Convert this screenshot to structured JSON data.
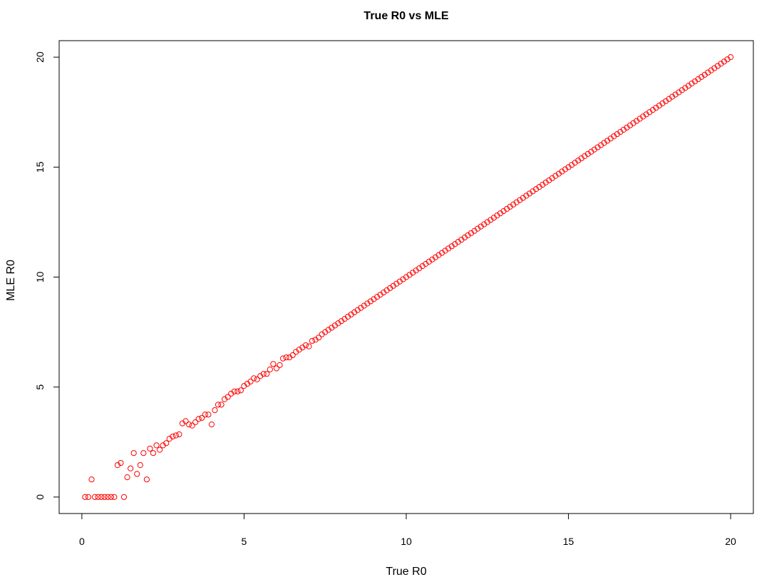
{
  "chart_data": {
    "type": "scatter",
    "title": "True R0 vs MLE",
    "xlabel": "True R0",
    "ylabel": "MLE R0",
    "xlim": [
      -0.7,
      20.7
    ],
    "ylim": [
      -0.75,
      20.75
    ],
    "xticks": [
      "0",
      "5",
      "10",
      "15",
      "20"
    ],
    "yticks": [
      "0",
      "5",
      "10",
      "15",
      "20"
    ],
    "grid": false,
    "legend": "none",
    "point_color": "#ff0000",
    "marker": "open-circle",
    "points": [
      [
        0.1,
        0
      ],
      [
        0.2,
        0
      ],
      [
        0.3,
        0.8
      ],
      [
        0.4,
        0
      ],
      [
        0.5,
        0
      ],
      [
        0.6,
        0
      ],
      [
        0.7,
        0
      ],
      [
        0.8,
        0
      ],
      [
        0.9,
        0
      ],
      [
        1.0,
        0
      ],
      [
        1.1,
        1.45
      ],
      [
        1.2,
        1.55
      ],
      [
        1.3,
        0
      ],
      [
        1.4,
        0.9
      ],
      [
        1.5,
        1.3
      ],
      [
        1.6,
        2.0
      ],
      [
        1.7,
        1.05
      ],
      [
        1.8,
        1.45
      ],
      [
        1.9,
        2.0
      ],
      [
        2.0,
        0.8
      ],
      [
        2.1,
        2.2
      ],
      [
        2.2,
        2.0
      ],
      [
        2.3,
        2.35
      ],
      [
        2.4,
        2.15
      ],
      [
        2.5,
        2.35
      ],
      [
        2.6,
        2.45
      ],
      [
        2.7,
        2.65
      ],
      [
        2.8,
        2.75
      ],
      [
        2.9,
        2.8
      ],
      [
        3.0,
        2.85
      ],
      [
        3.1,
        3.35
      ],
      [
        3.2,
        3.45
      ],
      [
        3.3,
        3.3
      ],
      [
        3.4,
        3.25
      ],
      [
        3.5,
        3.4
      ],
      [
        3.6,
        3.55
      ],
      [
        3.7,
        3.6
      ],
      [
        3.8,
        3.75
      ],
      [
        3.9,
        3.75
      ],
      [
        4.0,
        3.3
      ],
      [
        4.1,
        3.95
      ],
      [
        4.2,
        4.2
      ],
      [
        4.3,
        4.2
      ],
      [
        4.4,
        4.45
      ],
      [
        4.5,
        4.55
      ],
      [
        4.6,
        4.7
      ],
      [
        4.7,
        4.8
      ],
      [
        4.8,
        4.8
      ],
      [
        4.9,
        4.85
      ],
      [
        5.0,
        5.05
      ],
      [
        5.1,
        5.15
      ],
      [
        5.2,
        5.25
      ],
      [
        5.3,
        5.4
      ],
      [
        5.4,
        5.35
      ],
      [
        5.5,
        5.5
      ],
      [
        5.6,
        5.6
      ],
      [
        5.7,
        5.6
      ],
      [
        5.8,
        5.8
      ],
      [
        5.9,
        6.05
      ],
      [
        6.0,
        5.85
      ],
      [
        6.1,
        6.0
      ],
      [
        6.2,
        6.3
      ],
      [
        6.3,
        6.35
      ],
      [
        6.4,
        6.35
      ],
      [
        6.5,
        6.45
      ],
      [
        6.6,
        6.6
      ],
      [
        6.7,
        6.7
      ],
      [
        6.8,
        6.8
      ],
      [
        6.9,
        6.9
      ],
      [
        7.0,
        6.85
      ],
      [
        7.1,
        7.1
      ],
      [
        7.2,
        7.15
      ],
      [
        7.3,
        7.25
      ]
    ],
    "line_fit": {
      "x_start": 7.4,
      "x_end": 20.0,
      "step": 0.1,
      "slope": 1.0,
      "intercept": 0.0
    }
  }
}
